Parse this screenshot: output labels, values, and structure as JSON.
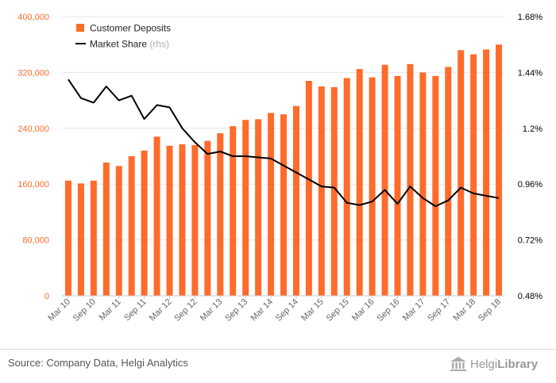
{
  "chart_data": {
    "type": "bar",
    "categories": [
      "Mar 10",
      "Jun 10",
      "Sep 10",
      "Dec 10",
      "Mar 11",
      "Jun 11",
      "Sep 11",
      "Dec 11",
      "Mar 12",
      "Jun 12",
      "Sep 12",
      "Dec 12",
      "Mar 13",
      "Jun 13",
      "Sep 13",
      "Dec 13",
      "Mar 14",
      "Jun 14",
      "Sep 14",
      "Dec 14",
      "Mar 15",
      "Jun 15",
      "Sep 15",
      "Dec 15",
      "Mar 16",
      "Jun 16",
      "Sep 16",
      "Dec 16",
      "Mar 17",
      "Jun 17",
      "Sep 17",
      "Dec 17",
      "Mar 18",
      "Jun 18",
      "Sep 18"
    ],
    "x_tick_labels": [
      "Mar 10",
      "Sep 10",
      "Mar 11",
      "Sep 11",
      "Mar 12",
      "Sep 12",
      "Mar 13",
      "Sep 13",
      "Mar 14",
      "Sep 14",
      "Mar 15",
      "Sep 15",
      "Mar 16",
      "Sep 16",
      "Mar 17",
      "Sep 17",
      "Mar 18",
      "Sep 18"
    ],
    "series": [
      {
        "name": "Customer Deposits",
        "axis": "left",
        "type": "bar",
        "color": "#ff6b2b",
        "values": [
          165000,
          161000,
          165000,
          191000,
          186000,
          200000,
          208000,
          228000,
          215000,
          217000,
          216000,
          222000,
          233000,
          243000,
          252000,
          253000,
          262000,
          260000,
          272000,
          308000,
          300000,
          299000,
          312000,
          325000,
          313000,
          331000,
          315000,
          332000,
          320000,
          315000,
          328000,
          352000,
          346000,
          353000,
          360000
        ]
      },
      {
        "name": "Market Share",
        "axis": "right",
        "type": "line",
        "color": "#000000",
        "values": [
          1.41,
          1.33,
          1.31,
          1.38,
          1.32,
          1.34,
          1.24,
          1.3,
          1.29,
          1.2,
          1.14,
          1.09,
          1.1,
          1.08,
          1.08,
          1.075,
          1.07,
          1.04,
          1.01,
          0.98,
          0.95,
          0.945,
          0.88,
          0.87,
          0.885,
          0.935,
          0.875,
          0.95,
          0.9,
          0.865,
          0.89,
          0.945,
          0.92,
          0.91,
          0.9
        ]
      }
    ],
    "y_left": {
      "min": 0,
      "max": 400000,
      "ticks": [
        "0",
        "80,000",
        "160,000",
        "240,000",
        "320,000",
        "400,000"
      ],
      "color": "#ff6b2b"
    },
    "y_right": {
      "min": 0.48,
      "max": 1.68,
      "ticks": [
        "0.48%",
        "0.72%",
        "0.96%",
        "1.2%",
        "1.44%",
        "1.68%"
      ],
      "color": "#000000"
    },
    "legend": {
      "position": "top-left",
      "rhs_note": "(rhs)"
    },
    "grid": true
  },
  "footer": {
    "source": "Source: Company Data, Helgi Analytics",
    "logo_light": "Helgi",
    "logo_bold": "Library"
  }
}
